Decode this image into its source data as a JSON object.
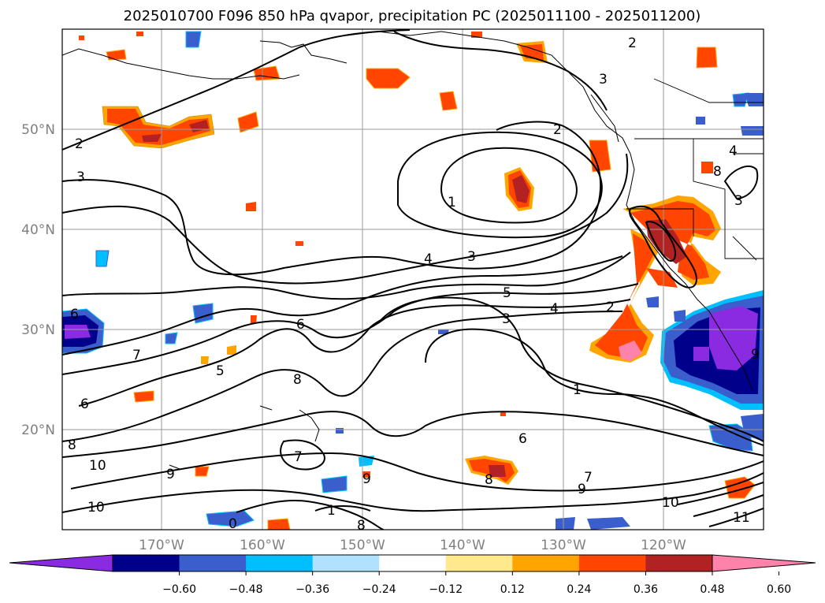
{
  "title": "2025010700 F096 850 hPa qvapor, precipitation PC (2025011100 - 2025011200)",
  "map": {
    "lat_labels": [
      "50°N",
      "40°N",
      "30°N",
      "20°N"
    ],
    "lon_labels": [
      "170°W",
      "160°W",
      "150°W",
      "140°W",
      "130°W",
      "120°W"
    ],
    "grid": true,
    "contour_field": "850 hPa qvapor",
    "contour_labels": [
      "2",
      "2",
      "2",
      "3",
      "3",
      "3",
      "1",
      "1",
      "4",
      "4",
      "4",
      "3",
      "3",
      "5",
      "5",
      "6",
      "6",
      "6",
      "6",
      "7",
      "7",
      "7",
      "8",
      "8",
      "8",
      "8",
      "9",
      "9",
      "9",
      "9",
      "10",
      "10",
      "10",
      "11",
      "0",
      "2",
      "8",
      "1"
    ]
  },
  "colorbar": {
    "tick_labels": [
      "−0.60",
      "−0.48",
      "−0.36",
      "−0.24",
      "−0.12",
      "0.12",
      "0.24",
      "0.36",
      "0.48",
      "0.60"
    ],
    "colors": [
      "#8a2be2",
      "#00008b",
      "#3a5fcd",
      "#00bfff",
      "#b0e2ff",
      "#ffffff",
      "#ffe98c",
      "#ffa500",
      "#ff4500",
      "#b22222",
      "#ff82ab"
    ],
    "extend": "both"
  }
}
